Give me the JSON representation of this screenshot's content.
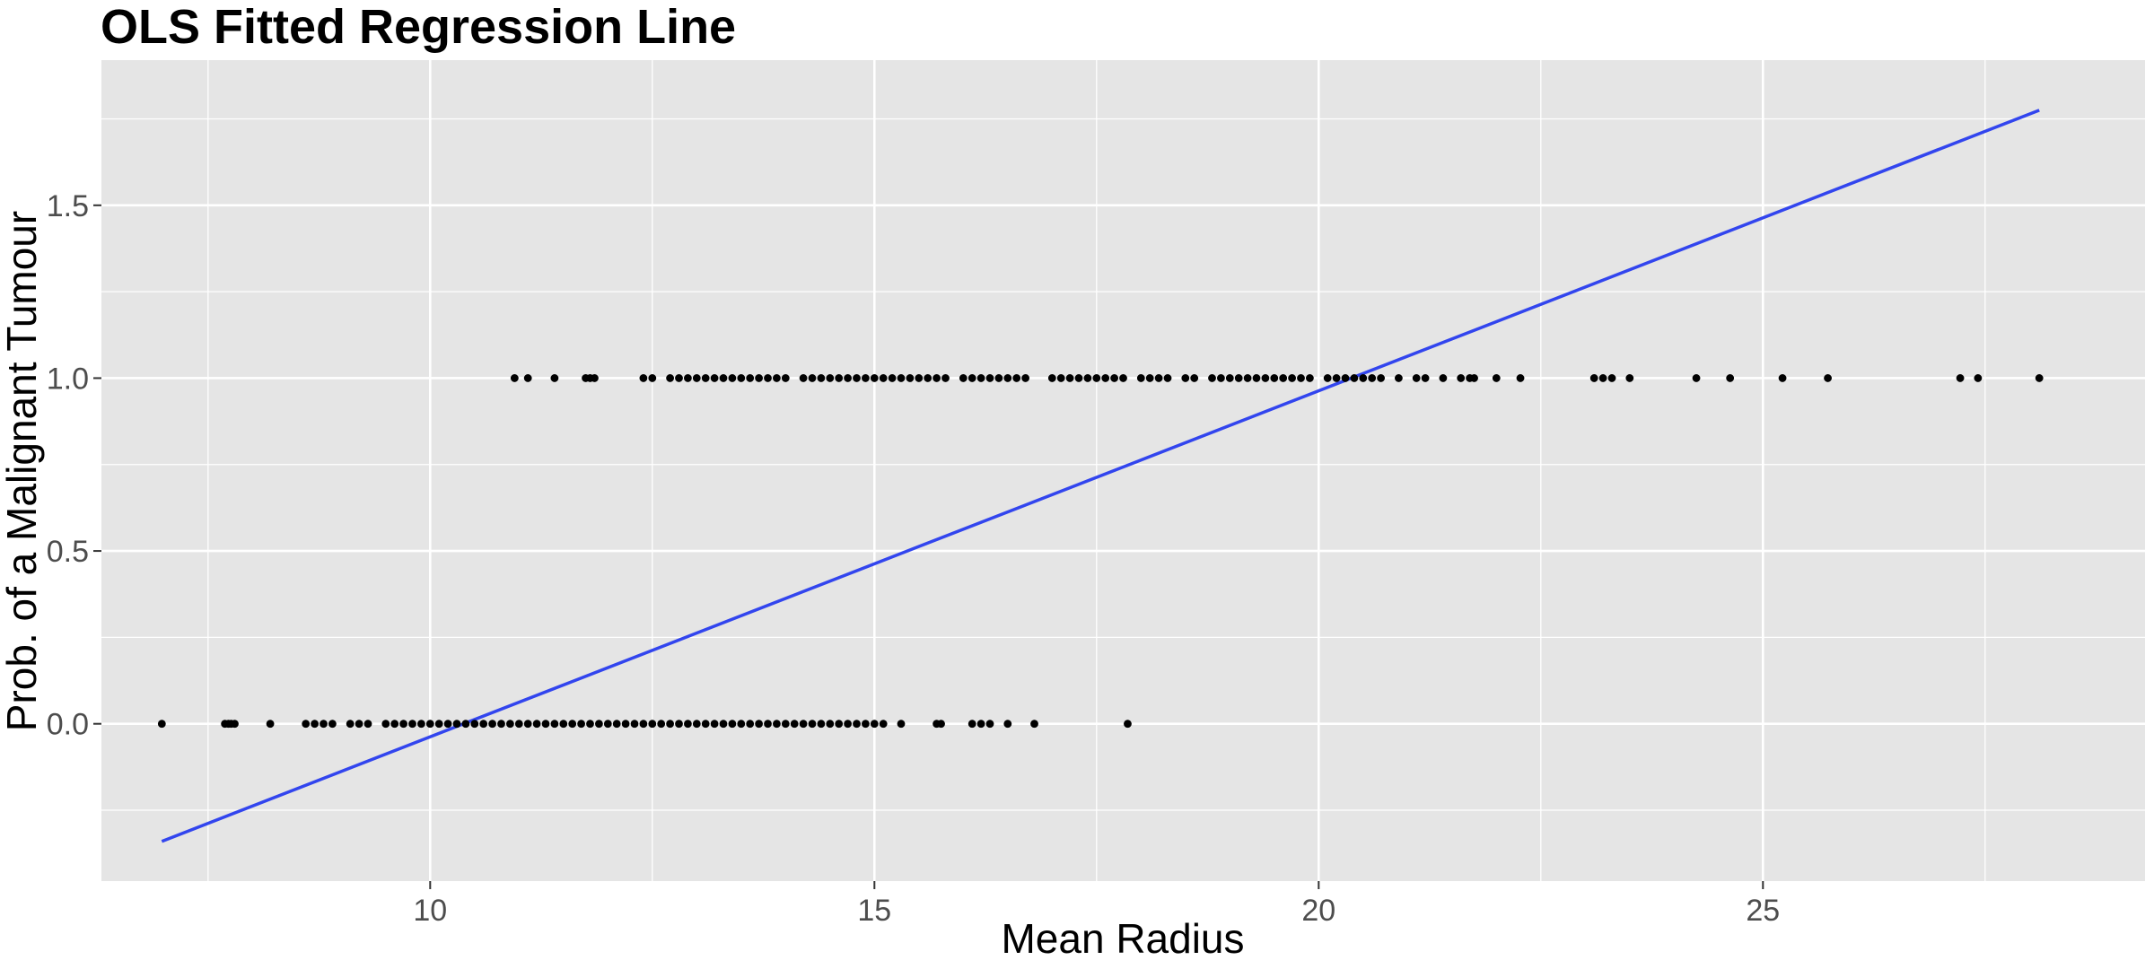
{
  "chart_data": {
    "type": "scatter",
    "title": "OLS Fitted Regression Line",
    "xlabel": "Mean Radius",
    "ylabel": "Prob. of a Malignant Tumour",
    "xlim": [
      6.3,
      29.3
    ],
    "ylim": [
      -0.455,
      1.92
    ],
    "x_ticks": [
      10,
      15,
      20,
      25
    ],
    "x_tick_labels": [
      "10",
      "15",
      "20",
      "25"
    ],
    "y_ticks": [
      0.0,
      0.5,
      1.0,
      1.5
    ],
    "y_tick_labels": [
      "0.0",
      "0.5",
      "1.0",
      "1.5"
    ],
    "grid": true,
    "colors": {
      "panel_background": "#e5e5e5",
      "grid": "#ffffff",
      "points": "#000000",
      "fit_line": "#3245ee",
      "tick_label": "#4d4d4d",
      "tick_mark": "#333333"
    },
    "series": [
      {
        "type": "scatter",
        "y": 0,
        "x": [
          6.98,
          7.69,
          7.73,
          7.76,
          7.8,
          8.2,
          8.6,
          8.7,
          8.8,
          8.9,
          9.1,
          9.2,
          9.3,
          9.5,
          9.6,
          9.7,
          9.8,
          9.9,
          10.0,
          10.1,
          10.2,
          10.3,
          10.4,
          10.5,
          10.6,
          10.7,
          10.8,
          10.9,
          11.0,
          11.1,
          11.2,
          11.3,
          11.4,
          11.5,
          11.6,
          11.7,
          11.8,
          11.9,
          12.0,
          12.1,
          12.2,
          12.3,
          12.4,
          12.5,
          12.6,
          12.7,
          12.8,
          12.9,
          13.0,
          13.1,
          13.2,
          13.3,
          13.4,
          13.5,
          13.6,
          13.7,
          13.8,
          13.9,
          14.0,
          14.1,
          14.2,
          14.3,
          14.4,
          14.5,
          14.6,
          14.7,
          14.8,
          14.9,
          15.0,
          15.1,
          15.3,
          15.7,
          15.75,
          16.1,
          16.2,
          16.3,
          16.5,
          16.8,
          17.85
        ]
      },
      {
        "type": "scatter",
        "y": 1,
        "x": [
          10.95,
          11.1,
          11.4,
          11.75,
          11.8,
          11.85,
          12.4,
          12.5,
          12.7,
          12.8,
          12.9,
          13.0,
          13.1,
          13.2,
          13.3,
          13.4,
          13.5,
          13.6,
          13.7,
          13.8,
          13.9,
          14.0,
          14.2,
          14.3,
          14.4,
          14.5,
          14.6,
          14.7,
          14.8,
          14.9,
          15.0,
          15.1,
          15.2,
          15.3,
          15.4,
          15.5,
          15.6,
          15.7,
          15.8,
          16.0,
          16.1,
          16.2,
          16.3,
          16.4,
          16.5,
          16.6,
          16.7,
          17.0,
          17.1,
          17.2,
          17.3,
          17.4,
          17.5,
          17.6,
          17.7,
          17.8,
          18.0,
          18.1,
          18.2,
          18.3,
          18.5,
          18.6,
          18.8,
          18.9,
          19.0,
          19.1,
          19.2,
          19.3,
          19.4,
          19.5,
          19.6,
          19.7,
          19.8,
          19.9,
          20.1,
          20.2,
          20.3,
          20.4,
          20.5,
          20.6,
          20.7,
          20.9,
          21.1,
          21.2,
          21.4,
          21.6,
          21.7,
          21.75,
          22.0,
          22.27,
          23.1,
          23.2,
          23.3,
          23.5,
          24.25,
          24.63,
          25.22,
          25.73,
          27.22,
          27.42,
          28.11
        ]
      },
      {
        "type": "line",
        "name": "",
        "x": [
          6.98,
          28.11
        ],
        "y": [
          -0.34,
          1.775
        ]
      }
    ]
  }
}
